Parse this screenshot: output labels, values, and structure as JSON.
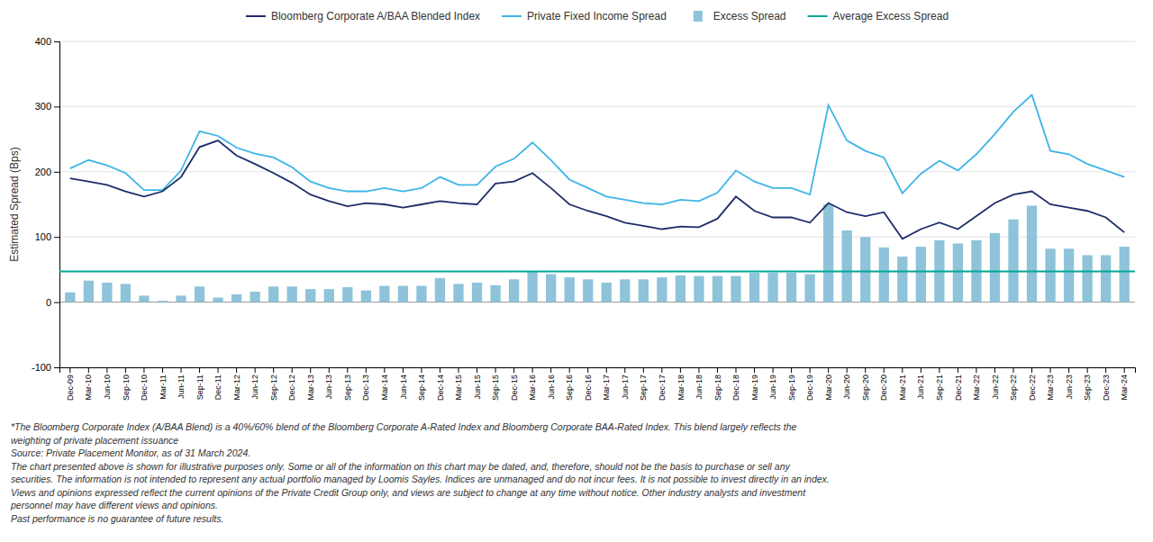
{
  "chart_data": {
    "type": "bar",
    "y_label": "Estimated Spread (Bps)",
    "ylim": [
      -100,
      400
    ],
    "yticks": [
      -100,
      0,
      100,
      200,
      300,
      400
    ],
    "grid": true,
    "categories": [
      "Dec-09",
      "Mar-10",
      "Jun-10",
      "Sep-10",
      "Dec-10",
      "Mar-11",
      "Jun-11",
      "Sep-11",
      "Dec-11",
      "Mar-12",
      "Jun-12",
      "Sep-12",
      "Dec-12",
      "Mar-13",
      "Jun-13",
      "Sep-13",
      "Dec-13",
      "Mar-14",
      "Jun-14",
      "Sep-14",
      "Dec-14",
      "Mar-15",
      "Jun-15",
      "Sep-15",
      "Dec-15",
      "Mar-16",
      "Jun-16",
      "Sep-16",
      "Dec-16",
      "Mar-17",
      "Jun-17",
      "Sep-17",
      "Dec-17",
      "Mar-18",
      "Jun-18",
      "Sep-18",
      "Dec-18",
      "Mar-19",
      "Jun-19",
      "Sep-19",
      "Dec-19",
      "Mar-20",
      "Jun-20",
      "Sep-20",
      "Dec-20",
      "Mar-21",
      "Jun-21",
      "Sep-21",
      "Dec-21",
      "Mar-22",
      "Jun-22",
      "Sep-22",
      "Dec-22",
      "Mar-23",
      "Jun-23",
      "Sep-23",
      "Dec-23",
      "Mar-24"
    ],
    "series": [
      {
        "name": "Bloomberg Corporate A/BAA Blended Index",
        "type": "line",
        "color": "#1e2d6b",
        "values": [
          190,
          185,
          180,
          170,
          162,
          170,
          192,
          238,
          248,
          225,
          212,
          198,
          183,
          165,
          155,
          147,
          152,
          150,
          145,
          150,
          155,
          152,
          150,
          182,
          185,
          198,
          175,
          150,
          140,
          132,
          122,
          117,
          112,
          116,
          115,
          128,
          162,
          140,
          130,
          130,
          122,
          152,
          138,
          132,
          138,
          97,
          112,
          122,
          112,
          132,
          152,
          165,
          170,
          150,
          145,
          140,
          130,
          107
        ]
      },
      {
        "name": "Private Fixed Income Spread",
        "type": "line",
        "color": "#3db5e6",
        "values": [
          205,
          218,
          210,
          198,
          172,
          172,
          202,
          262,
          255,
          237,
          228,
          222,
          207,
          185,
          175,
          170,
          170,
          175,
          170,
          175,
          192,
          180,
          180,
          208,
          220,
          245,
          218,
          188,
          175,
          162,
          157,
          152,
          150,
          157,
          155,
          168,
          202,
          185,
          175,
          175,
          165,
          302,
          248,
          232,
          222,
          167,
          197,
          217,
          202,
          227,
          258,
          292,
          318,
          232,
          227,
          212,
          202,
          192
        ]
      },
      {
        "name": "Excess Spread",
        "type": "bar",
        "color": "#7ab8d4",
        "values": [
          15,
          33,
          30,
          28,
          10,
          2,
          10,
          24,
          7,
          12,
          16,
          24,
          24,
          20,
          20,
          23,
          18,
          25,
          25,
          25,
          37,
          28,
          30,
          26,
          35,
          47,
          43,
          38,
          35,
          30,
          35,
          35,
          38,
          41,
          40,
          40,
          40,
          45,
          45,
          45,
          43,
          150,
          110,
          100,
          84,
          70,
          85,
          95,
          90,
          95,
          106,
          127,
          148,
          82,
          82,
          72,
          72,
          85
        ]
      }
    ],
    "reference_line": {
      "name": "Average Excess Spread",
      "value": 47,
      "color": "#00a896"
    },
    "footnotes": [
      [
        "*The Bloomberg Corporate Index (A/BAA Blend) is a 40%/60% blend of the Bloomberg Corporate A-Rated Index and Bloomberg Corporate BAA-Rated Index. This blend largely reflects the"
      ],
      [
        "weighting of private placement issuance"
      ],
      [
        "Source: Private Placement Monitor, as of 31 March 2024."
      ],
      [
        "The chart presented above is shown for illustrative purposes only.",
        " Some or all of the information on this chart may be dated, and, therefore, should not be the basis to purchase or sell any"
      ],
      [
        "securities. The information is not intended to represent any actual portfolio managed by Loomis Sayles. Indices are unmanaged and do not incur fees. It is not possible to invest directly in an index."
      ],
      [
        "Views and opinions expressed reflect the current opinions of the Private Credit Group only, and views are subject to change at any time without notice. Other industry analysts and investment"
      ],
      [
        "personnel may have different views and opinions."
      ],
      [
        "Past performance is no guarantee of future results."
      ]
    ]
  }
}
